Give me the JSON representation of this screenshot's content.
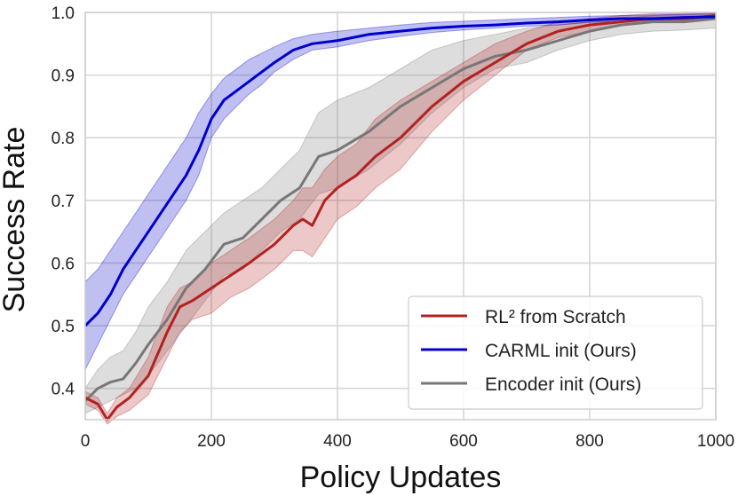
{
  "chart_data": {
    "type": "line",
    "title": "",
    "xlabel": "Policy Updates",
    "ylabel": "Success Rate",
    "xlim": [
      0,
      1000
    ],
    "ylim": [
      0.35,
      1.0
    ],
    "xticks": [
      0,
      200,
      400,
      600,
      800,
      1000
    ],
    "xtick_labels": [
      "0",
      "200",
      "400",
      "600",
      "800",
      "1000"
    ],
    "yticks": [
      0.4,
      0.5,
      0.6,
      0.7,
      0.8,
      0.9,
      1.0
    ],
    "ytick_labels": [
      "0.4",
      "0.5",
      "0.6",
      "0.7",
      "0.8",
      "0.9",
      "1.0"
    ],
    "grid": true,
    "legend_position": "lower-right",
    "series": [
      {
        "name": "RL² from Scratch",
        "color": "#b22222",
        "x": [
          0,
          20,
          35,
          50,
          70,
          100,
          130,
          150,
          170,
          200,
          230,
          260,
          300,
          330,
          345,
          360,
          380,
          400,
          430,
          460,
          500,
          550,
          600,
          650,
          700,
          750,
          800,
          850,
          900,
          950,
          1000
        ],
        "y": [
          0.385,
          0.375,
          0.35,
          0.37,
          0.385,
          0.42,
          0.49,
          0.53,
          0.54,
          0.56,
          0.58,
          0.6,
          0.63,
          0.66,
          0.67,
          0.66,
          0.7,
          0.72,
          0.74,
          0.77,
          0.8,
          0.85,
          0.89,
          0.92,
          0.95,
          0.97,
          0.98,
          0.985,
          0.99,
          0.99,
          0.995
        ],
        "lower": [
          0.375,
          0.365,
          0.343,
          0.355,
          0.365,
          0.39,
          0.45,
          0.49,
          0.51,
          0.52,
          0.545,
          0.56,
          0.59,
          0.62,
          0.62,
          0.61,
          0.64,
          0.67,
          0.69,
          0.72,
          0.75,
          0.81,
          0.86,
          0.9,
          0.94,
          0.96,
          0.97,
          0.98,
          0.985,
          0.985,
          0.99
        ],
        "upper": [
          0.395,
          0.385,
          0.36,
          0.385,
          0.4,
          0.45,
          0.53,
          0.56,
          0.57,
          0.6,
          0.62,
          0.64,
          0.67,
          0.7,
          0.72,
          0.72,
          0.75,
          0.77,
          0.79,
          0.83,
          0.86,
          0.89,
          0.92,
          0.95,
          0.97,
          0.985,
          0.99,
          0.995,
          0.998,
          0.998,
          1.0
        ]
      },
      {
        "name": "CARML init (Ours)",
        "color": "#0000cc",
        "x": [
          0,
          20,
          40,
          60,
          80,
          100,
          120,
          140,
          160,
          180,
          200,
          220,
          240,
          260,
          280,
          300,
          330,
          360,
          400,
          450,
          500,
          550,
          600,
          650,
          700,
          750,
          800,
          850,
          900,
          950,
          1000
        ],
        "y": [
          0.5,
          0.52,
          0.55,
          0.59,
          0.62,
          0.65,
          0.68,
          0.71,
          0.74,
          0.78,
          0.83,
          0.86,
          0.875,
          0.89,
          0.905,
          0.92,
          0.94,
          0.95,
          0.955,
          0.965,
          0.97,
          0.975,
          0.978,
          0.98,
          0.983,
          0.985,
          0.988,
          0.99,
          0.99,
          0.992,
          0.993
        ],
        "lower": [
          0.43,
          0.47,
          0.51,
          0.55,
          0.58,
          0.61,
          0.64,
          0.67,
          0.7,
          0.74,
          0.8,
          0.83,
          0.85,
          0.87,
          0.885,
          0.905,
          0.925,
          0.94,
          0.945,
          0.955,
          0.962,
          0.968,
          0.972,
          0.975,
          0.978,
          0.98,
          0.984,
          0.986,
          0.987,
          0.988,
          0.99
        ],
        "upper": [
          0.57,
          0.59,
          0.62,
          0.65,
          0.68,
          0.71,
          0.74,
          0.77,
          0.8,
          0.84,
          0.87,
          0.895,
          0.91,
          0.925,
          0.935,
          0.945,
          0.958,
          0.965,
          0.97,
          0.975,
          0.98,
          0.984,
          0.986,
          0.988,
          0.99,
          0.992,
          0.994,
          0.995,
          0.996,
          0.997,
          0.998
        ]
      },
      {
        "name": "Encoder init (Ours)",
        "color": "#777777",
        "x": [
          0,
          20,
          40,
          60,
          80,
          100,
          130,
          160,
          190,
          220,
          250,
          280,
          310,
          340,
          370,
          400,
          450,
          500,
          550,
          600,
          650,
          700,
          750,
          800,
          850,
          900,
          950,
          1000
        ],
        "y": [
          0.38,
          0.4,
          0.41,
          0.415,
          0.44,
          0.47,
          0.51,
          0.56,
          0.59,
          0.63,
          0.64,
          0.67,
          0.7,
          0.72,
          0.77,
          0.78,
          0.81,
          0.85,
          0.88,
          0.91,
          0.93,
          0.94,
          0.955,
          0.97,
          0.98,
          0.985,
          0.985,
          0.99
        ],
        "lower": [
          0.36,
          0.37,
          0.38,
          0.39,
          0.4,
          0.42,
          0.46,
          0.5,
          0.54,
          0.58,
          0.59,
          0.62,
          0.65,
          0.67,
          0.71,
          0.72,
          0.75,
          0.79,
          0.84,
          0.88,
          0.91,
          0.92,
          0.94,
          0.955,
          0.965,
          0.97,
          0.972,
          0.975
        ],
        "upper": [
          0.4,
          0.43,
          0.45,
          0.46,
          0.49,
          0.53,
          0.57,
          0.62,
          0.65,
          0.68,
          0.7,
          0.72,
          0.75,
          0.78,
          0.84,
          0.86,
          0.88,
          0.91,
          0.94,
          0.955,
          0.965,
          0.975,
          0.98,
          0.985,
          0.99,
          0.995,
          0.997,
          0.998
        ]
      }
    ]
  }
}
